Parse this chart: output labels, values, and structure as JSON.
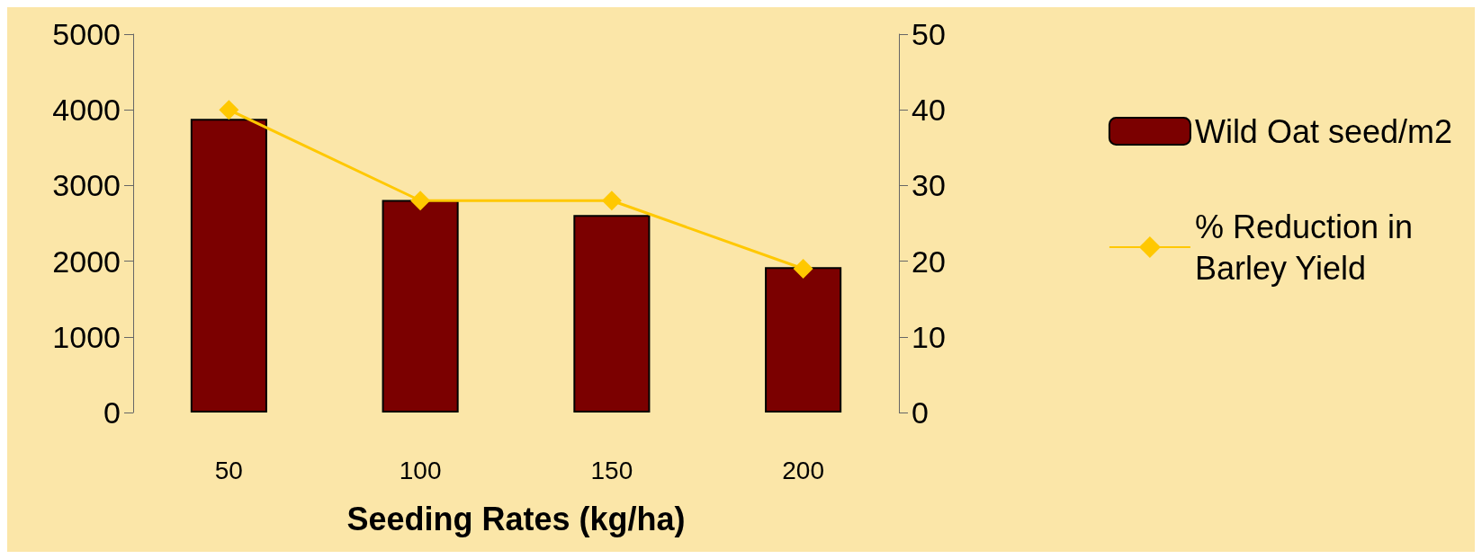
{
  "chart_data": {
    "type": "bar",
    "xlabel": "Seeding Rates (kg/ha)",
    "categories": [
      "50",
      "100",
      "150",
      "200"
    ],
    "series": [
      {
        "name": "Wild Oat seed/m2",
        "color": "#7b0000",
        "values": [
          3880,
          2810,
          2610,
          1920
        ]
      },
      {
        "name": "% Reduction in\nBarley Yield",
        "type": "line",
        "axis": "y2",
        "color": "#ffc800",
        "values": [
          40,
          28,
          28,
          19
        ]
      }
    ],
    "ylim": [
      0,
      5000
    ],
    "yticks": [
      0,
      1000,
      2000,
      3000,
      4000,
      5000
    ],
    "y2lim": [
      0,
      50
    ],
    "y2ticks": [
      0,
      10,
      20,
      30,
      40,
      50
    ],
    "grid": false,
    "legend": "right",
    "marker": "diamond",
    "line_style": "solid"
  }
}
